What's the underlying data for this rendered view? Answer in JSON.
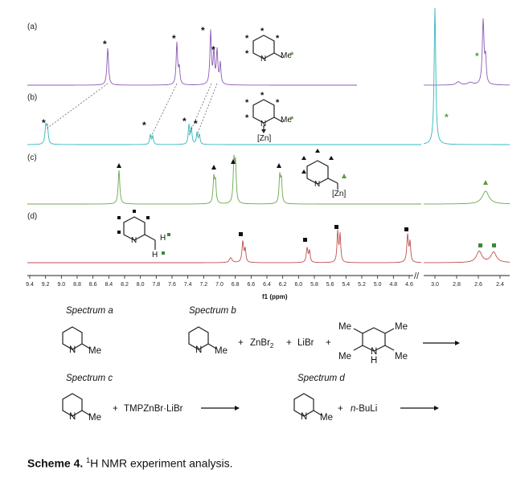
{
  "panels": [
    {
      "label": "(a)",
      "color": "#8c5bb5"
    },
    {
      "label": "(b)",
      "color": "#33b7bf"
    },
    {
      "label": "(c)",
      "color": "#6aa84f"
    },
    {
      "label": "(d)",
      "color": "#c0504d"
    }
  ],
  "marker_colors": {
    "star_black": "#111111",
    "star_green": "#5a9a3a",
    "triangle": "#111111",
    "square_green": "#3a8a3a"
  },
  "axis": {
    "title": "f1 (ppm)",
    "left_ticks": [
      "9.4",
      "9.2",
      "9.0",
      "8.8",
      "8.6",
      "8.4",
      "8.2",
      "8.0",
      "7.8",
      "7.6",
      "7.4",
      "7.2",
      "7.0",
      "6.8",
      "6.6",
      "6.4",
      "6.2",
      "6.0",
      "5.8",
      "5.6",
      "5.4",
      "5.2",
      "5.0",
      "4.8",
      "4.6"
    ],
    "right_ticks": [
      "3.0",
      "2.8",
      "2.6",
      "2.4"
    ]
  },
  "structures": {
    "me": "Me",
    "n": "N",
    "h": "H",
    "zn": "[Zn]"
  },
  "scheme": {
    "spectrum_a": "Spectrum a",
    "spectrum_b": "Spectrum b",
    "spectrum_c": "Spectrum c",
    "spectrum_d": "Spectrum d",
    "plus": "+",
    "znbr2": "ZnBr",
    "znbr2_sub": "2",
    "libr": "LiBr",
    "tmp_reagent": "TMPZnBr·LiBr",
    "buli_prefix": "n",
    "buli_rest": "-BuLi"
  },
  "caption": {
    "bold": "Scheme 4.",
    "sup": "1",
    "text": "H NMR experiment analysis."
  }
}
